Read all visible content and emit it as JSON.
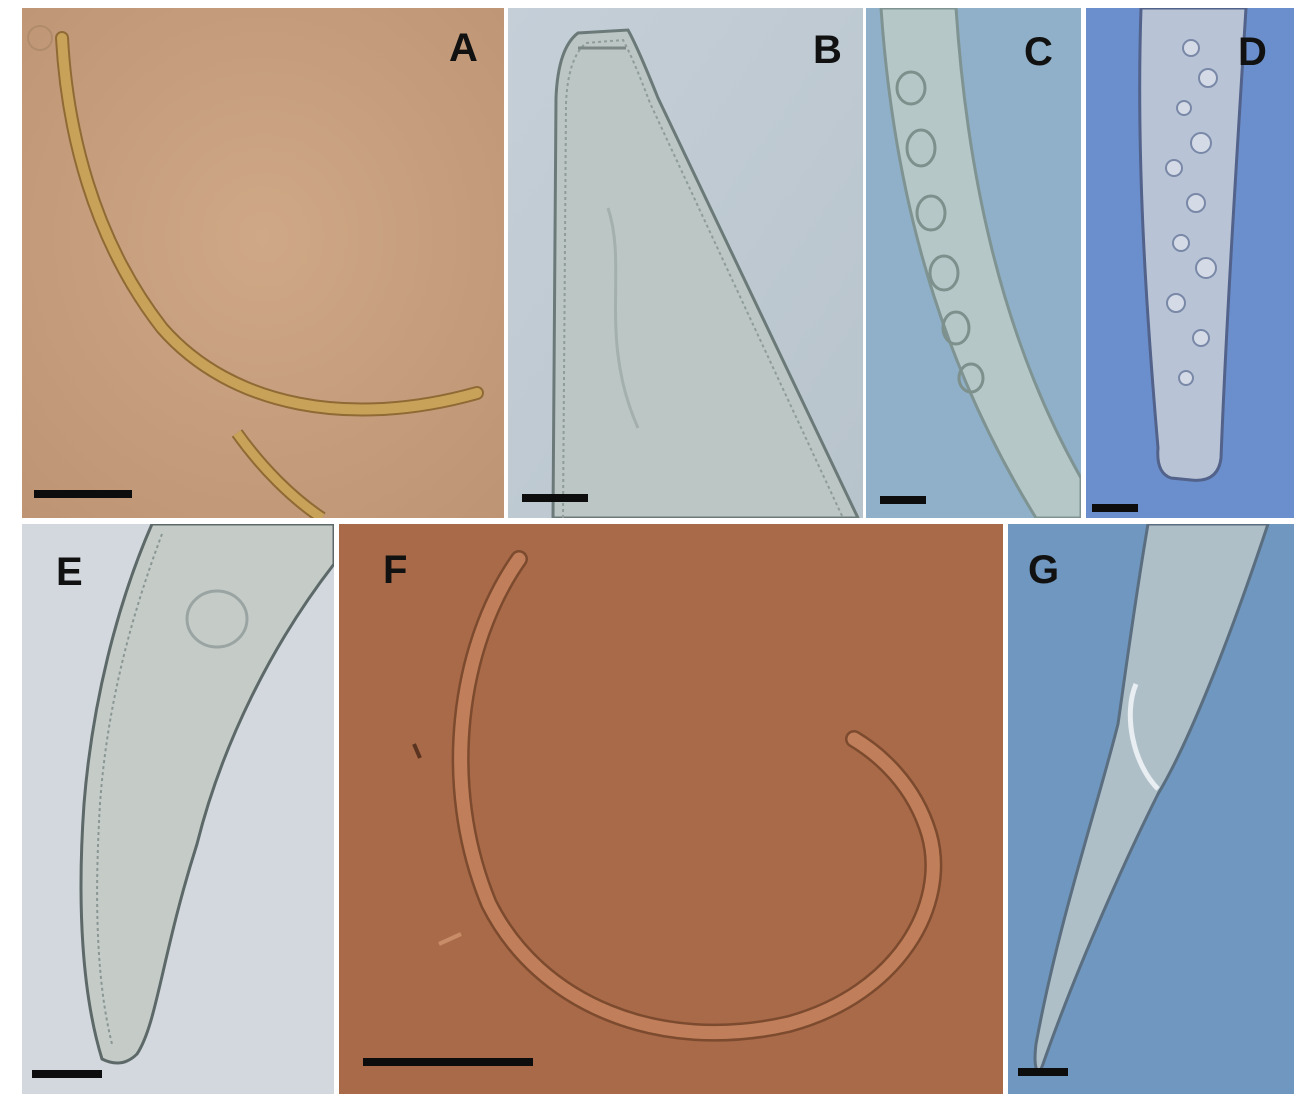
{
  "figure": {
    "panels": [
      {
        "id": "A",
        "label": "A",
        "background": "#c8a080"
      },
      {
        "id": "B",
        "label": "B",
        "background": "#c6d0d8"
      },
      {
        "id": "C",
        "label": "C",
        "background": "#8fb0c8"
      },
      {
        "id": "D",
        "label": "D",
        "background": "#6a8fcc"
      },
      {
        "id": "E",
        "label": "E",
        "background": "#d2d8de"
      },
      {
        "id": "F",
        "label": "F",
        "background": "#a86a48"
      },
      {
        "id": "G",
        "label": "G",
        "background": "#6f97bf"
      }
    ],
    "scale_bar_color": "#0d0d0d"
  }
}
